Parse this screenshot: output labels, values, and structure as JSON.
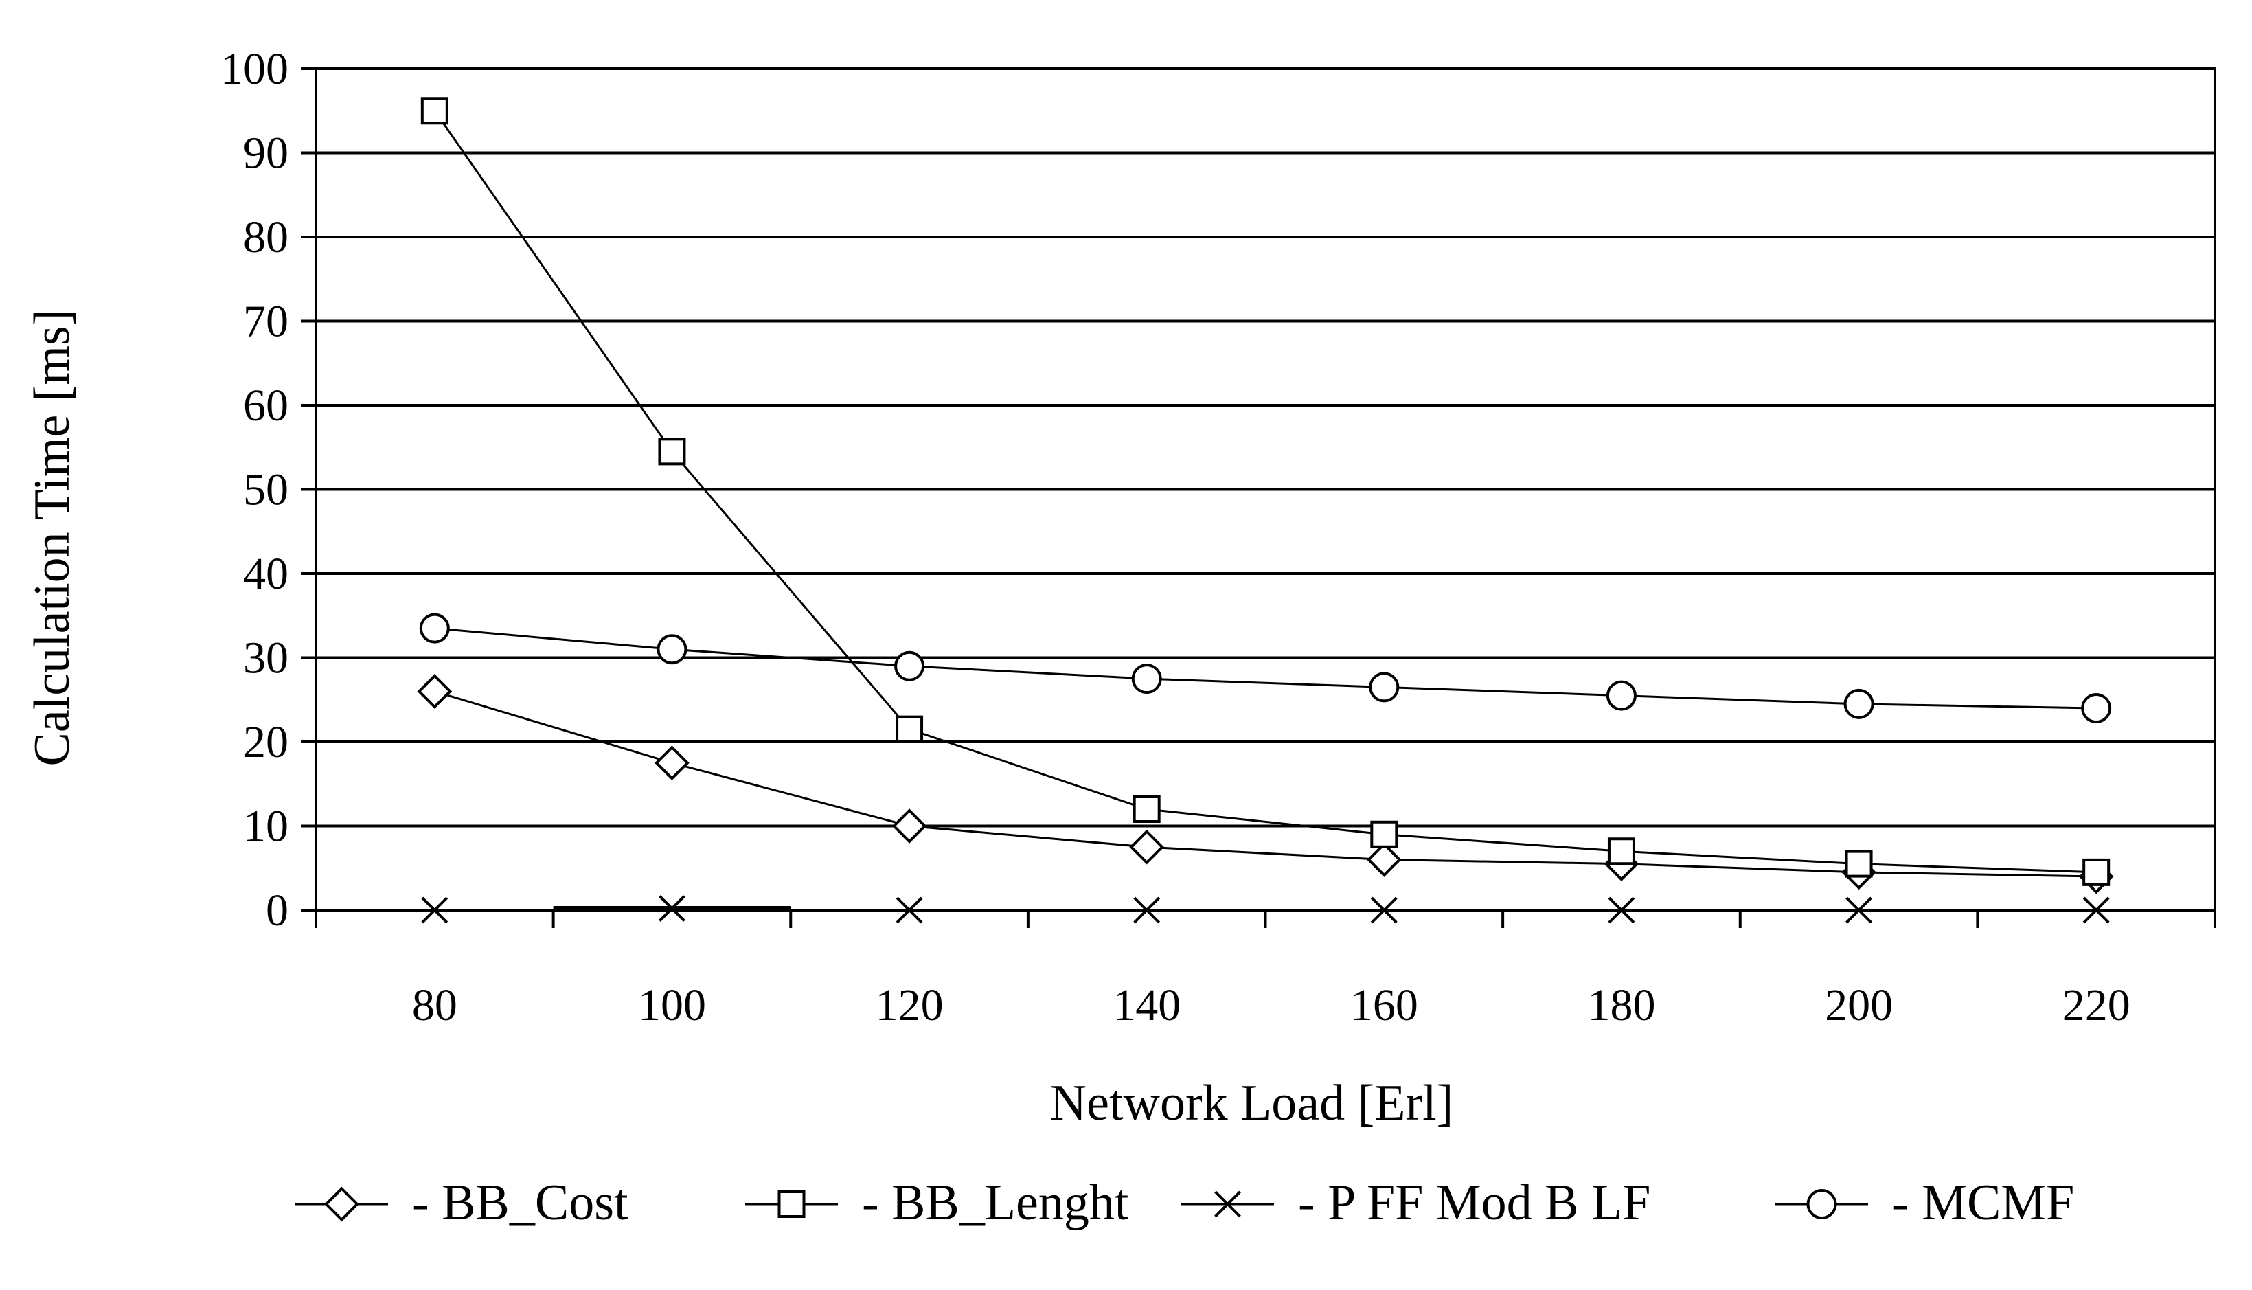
{
  "chart_data": {
    "type": "line",
    "title": "",
    "xlabel": "Network Load [Erl]",
    "ylabel": "Calculation Time [ms]",
    "categories": [
      "80",
      "100",
      "120",
      "140",
      "160",
      "180",
      "200",
      "220"
    ],
    "x": [
      80,
      100,
      120,
      140,
      160,
      180,
      200,
      220
    ],
    "ylim": [
      0,
      100
    ],
    "yticks": [
      "0",
      "10",
      "20",
      "30",
      "40",
      "50",
      "60",
      "70",
      "80",
      "90",
      "100"
    ],
    "grid": "horizontal",
    "legend_position": "bottom",
    "series": [
      {
        "name": "- BB_Cost",
        "marker": "diamond",
        "values": [
          26,
          17.5,
          10,
          7.5,
          6,
          5.5,
          4.5,
          4
        ]
      },
      {
        "name": "- BB_Lenght",
        "marker": "square",
        "values": [
          95,
          54.5,
          21.5,
          12,
          9,
          7,
          5.5,
          4.5
        ]
      },
      {
        "name": "- P FF Mod B LF",
        "marker": "x",
        "values": [
          0,
          0.2,
          0,
          0,
          0,
          0,
          0,
          0
        ]
      },
      {
        "name": "- MCMF",
        "marker": "circle",
        "values": [
          33.5,
          31,
          29,
          27.5,
          26.5,
          25.5,
          24.5,
          24
        ]
      }
    ]
  }
}
